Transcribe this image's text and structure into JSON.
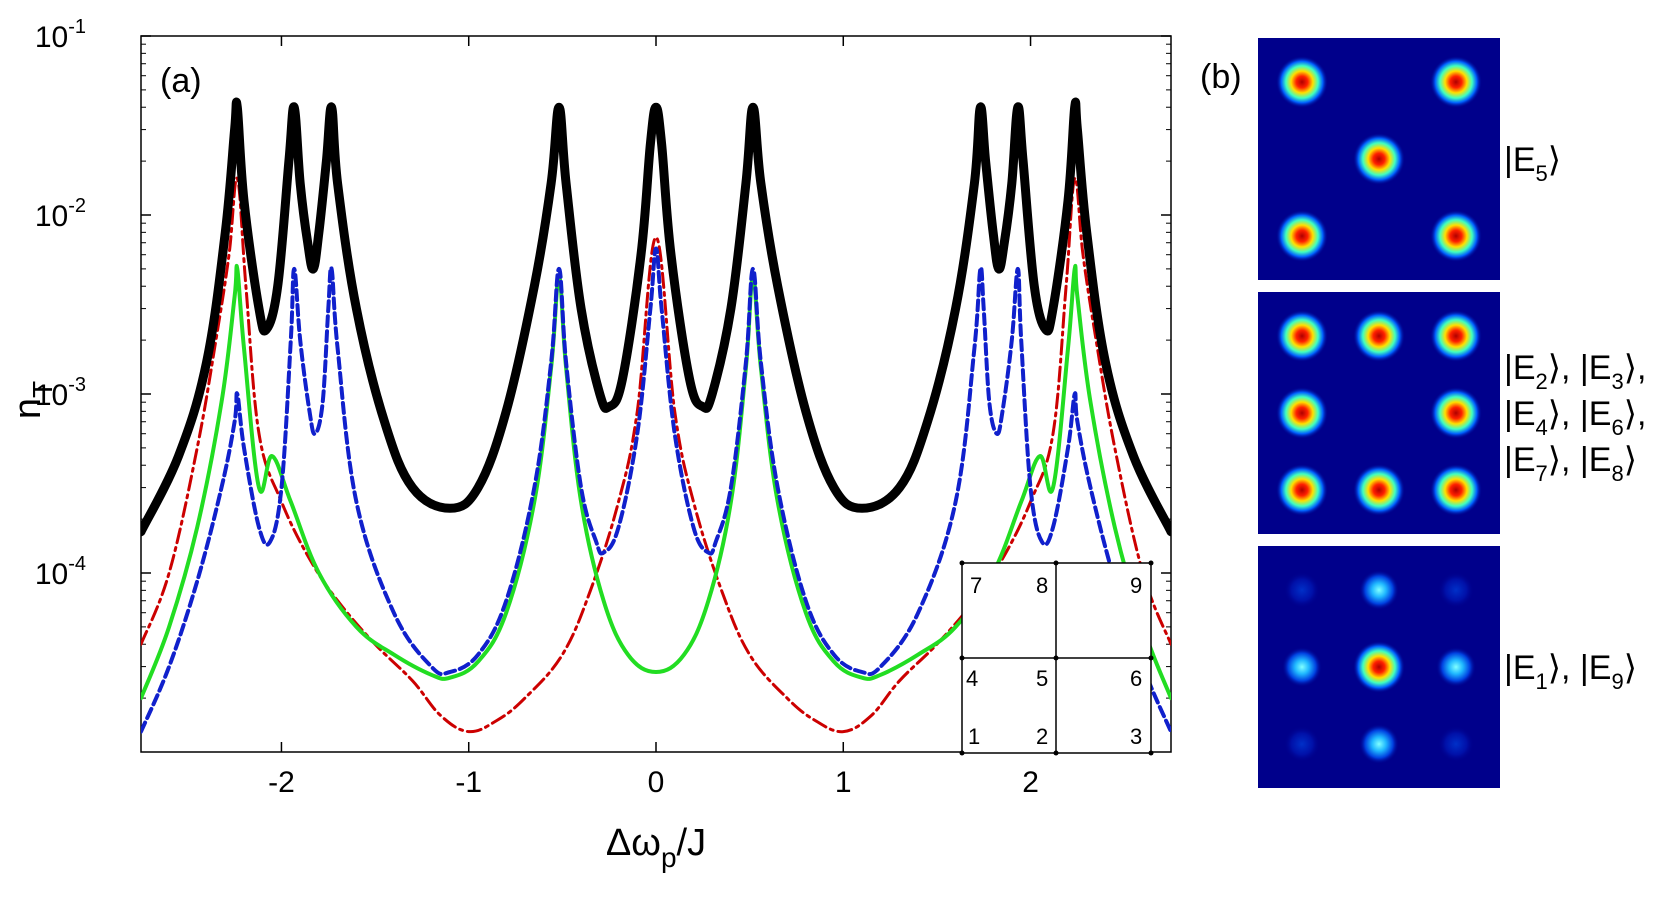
{
  "chart_data": {
    "type": "line",
    "panel_label": "(a)",
    "xlabel": {
      "base": "Δω",
      "sub": "p",
      "rest": "/J"
    },
    "ylabel": {
      "base": "n",
      "sub": "T"
    },
    "xlim": [
      -2.75,
      2.75
    ],
    "ylim": [
      1e-05,
      0.1
    ],
    "yscale": "log",
    "xticks": [
      {
        "value": -2,
        "label": "-2"
      },
      {
        "value": -1,
        "label": "-1"
      },
      {
        "value": 0,
        "label": "0"
      },
      {
        "value": 1,
        "label": "1"
      },
      {
        "value": 2,
        "label": "2"
      }
    ],
    "yticks": [
      {
        "value": 0.1,
        "base": "10",
        "exp": "-1"
      },
      {
        "value": 0.01,
        "base": "10",
        "exp": "-2"
      },
      {
        "value": 0.001,
        "base": "10",
        "exp": "-3"
      },
      {
        "value": 0.0001,
        "base": "10",
        "exp": "-4"
      }
    ],
    "series": [
      {
        "color": "#cc0000",
        "style": "dashdot",
        "x": [
          -2.75,
          -2.6,
          -2.45,
          -2.35,
          -2.28,
          -2.236,
          -2.19,
          -2.12,
          -2.0,
          -1.85,
          -1.7,
          -1.5,
          -1.3,
          -1.15,
          -1.0,
          -0.85,
          -0.7,
          -0.5,
          -0.35,
          -0.2,
          -0.1,
          0.0,
          0.1,
          0.2,
          0.35,
          0.5,
          0.7,
          0.85,
          1.0,
          1.15,
          1.3,
          1.5,
          1.7,
          1.85,
          2.0,
          2.12,
          2.19,
          2.236,
          2.28,
          2.35,
          2.45,
          2.6,
          2.75
        ],
        "y": [
          4e-05,
          0.0001,
          0.0005,
          0.002,
          0.006,
          0.016,
          0.004,
          0.0006,
          0.00025,
          0.00012,
          7e-05,
          4e-05,
          2.5e-05,
          1.6e-05,
          1.3e-05,
          1.5e-05,
          2e-05,
          3.5e-05,
          8e-05,
          0.00025,
          0.0008,
          0.0075,
          0.0008,
          0.00025,
          8e-05,
          3.5e-05,
          2e-05,
          1.5e-05,
          1.3e-05,
          1.6e-05,
          2.5e-05,
          4e-05,
          7e-05,
          0.00012,
          0.00025,
          0.0006,
          0.004,
          0.016,
          0.006,
          0.002,
          0.0005,
          0.0001,
          4e-05
        ]
      },
      {
        "color": "#22dd22",
        "style": "solid",
        "x": [
          -2.75,
          -2.6,
          -2.45,
          -2.32,
          -2.25,
          -2.236,
          -2.2,
          -2.12,
          -2.05,
          -1.95,
          -1.8,
          -1.6,
          -1.4,
          -1.2,
          -1.1,
          -0.95,
          -0.8,
          -0.65,
          -0.56,
          -0.518,
          -0.48,
          -0.4,
          -0.28,
          -0.15,
          0.0,
          0.15,
          0.28,
          0.4,
          0.48,
          0.518,
          0.56,
          0.65,
          0.8,
          0.95,
          1.1,
          1.2,
          1.4,
          1.6,
          1.8,
          1.95,
          2.05,
          2.12,
          2.2,
          2.236,
          2.25,
          2.32,
          2.45,
          2.6,
          2.75
        ],
        "y": [
          2e-05,
          5e-05,
          0.00018,
          0.0009,
          0.0035,
          0.005,
          0.0018,
          0.0003,
          0.00045,
          0.00025,
          0.0001,
          5e-05,
          3.5e-05,
          2.7e-05,
          2.6e-05,
          3.2e-05,
          6e-05,
          0.00025,
          0.0014,
          0.0045,
          0.0014,
          0.00025,
          7e-05,
          3.5e-05,
          2.8e-05,
          3.5e-05,
          7e-05,
          0.00025,
          0.0014,
          0.0045,
          0.0014,
          0.00025,
          6e-05,
          3.2e-05,
          2.6e-05,
          2.7e-05,
          3.5e-05,
          5e-05,
          0.0001,
          0.00025,
          0.00045,
          0.0003,
          0.0018,
          0.005,
          0.0035,
          0.0009,
          0.00018,
          5e-05,
          2e-05
        ]
      },
      {
        "color": "#1020cc",
        "style": "dashed",
        "x": [
          -2.75,
          -2.6,
          -2.45,
          -2.32,
          -2.25,
          -2.236,
          -2.2,
          -2.12,
          -2.06,
          -2.0,
          -1.95,
          -1.932,
          -1.9,
          -1.85,
          -1.82,
          -1.78,
          -1.75,
          -1.732,
          -1.7,
          -1.6,
          -1.4,
          -1.2,
          -1.1,
          -0.95,
          -0.8,
          -0.65,
          -0.56,
          -0.518,
          -0.48,
          -0.4,
          -0.32,
          -0.28,
          -0.2,
          -0.1,
          -0.03,
          0.0,
          0.03,
          0.1,
          0.2,
          0.28,
          0.32,
          0.4,
          0.48,
          0.518,
          0.56,
          0.65,
          0.8,
          0.95,
          1.1,
          1.2,
          1.4,
          1.6,
          1.7,
          1.732,
          1.75,
          1.78,
          1.82,
          1.85,
          1.9,
          1.932,
          1.95,
          2.0,
          2.06,
          2.12,
          2.2,
          2.236,
          2.25,
          2.32,
          2.45,
          2.6,
          2.75
        ],
        "y": [
          1.3e-05,
          3e-05,
          9e-05,
          0.0003,
          0.0007,
          0.001,
          0.0005,
          0.00018,
          0.00015,
          0.0003,
          0.002,
          0.005,
          0.002,
          0.0008,
          0.0006,
          0.0009,
          0.003,
          0.005,
          0.0018,
          0.00025,
          6e-05,
          3e-05,
          2.8e-05,
          3.5e-05,
          7e-05,
          0.0003,
          0.0015,
          0.005,
          0.0015,
          0.0003,
          0.00015,
          0.00013,
          0.00018,
          0.0006,
          0.003,
          0.0065,
          0.003,
          0.0006,
          0.00018,
          0.00013,
          0.00015,
          0.0003,
          0.0015,
          0.005,
          0.0015,
          0.0003,
          7e-05,
          3.5e-05,
          2.8e-05,
          3e-05,
          6e-05,
          0.00025,
          0.0018,
          0.005,
          0.003,
          0.0009,
          0.0006,
          0.0008,
          0.002,
          0.005,
          0.002,
          0.0003,
          0.00015,
          0.00018,
          0.0005,
          0.001,
          0.0007,
          0.0003,
          9e-05,
          3e-05,
          1.3e-05
        ]
      },
      {
        "color": "#000000",
        "style": "solid-thick",
        "x": [
          -2.75,
          -2.55,
          -2.4,
          -2.3,
          -2.25,
          -2.236,
          -2.2,
          -2.12,
          -2.08,
          -2.02,
          -1.96,
          -1.932,
          -1.9,
          -1.86,
          -1.83,
          -1.8,
          -1.76,
          -1.732,
          -1.7,
          -1.6,
          -1.45,
          -1.3,
          -1.1,
          -0.95,
          -0.8,
          -0.65,
          -0.56,
          -0.518,
          -0.48,
          -0.4,
          -0.3,
          -0.25,
          -0.18,
          -0.08,
          -0.03,
          0.0,
          0.03,
          0.08,
          0.18,
          0.25,
          0.3,
          0.4,
          0.48,
          0.518,
          0.56,
          0.65,
          0.8,
          0.95,
          1.1,
          1.3,
          1.45,
          1.6,
          1.7,
          1.732,
          1.76,
          1.8,
          1.83,
          1.86,
          1.9,
          1.932,
          1.96,
          2.02,
          2.08,
          2.12,
          2.2,
          2.236,
          2.25,
          2.3,
          2.4,
          2.55,
          2.75
        ],
        "y": [
          0.00017,
          0.00045,
          0.0015,
          0.008,
          0.03,
          0.04,
          0.012,
          0.003,
          0.0023,
          0.004,
          0.02,
          0.04,
          0.015,
          0.007,
          0.005,
          0.008,
          0.02,
          0.04,
          0.015,
          0.003,
          0.0007,
          0.0003,
          0.00023,
          0.0003,
          0.0008,
          0.004,
          0.015,
          0.04,
          0.015,
          0.003,
          0.001,
          0.00085,
          0.0012,
          0.006,
          0.025,
          0.04,
          0.025,
          0.006,
          0.0012,
          0.00085,
          0.001,
          0.003,
          0.015,
          0.04,
          0.015,
          0.004,
          0.0008,
          0.0003,
          0.00023,
          0.0003,
          0.0007,
          0.003,
          0.015,
          0.04,
          0.02,
          0.008,
          0.005,
          0.007,
          0.015,
          0.04,
          0.02,
          0.004,
          0.0023,
          0.003,
          0.012,
          0.04,
          0.03,
          0.008,
          0.0015,
          0.00045,
          0.00017
        ]
      }
    ],
    "inset_labels": [
      "7",
      "8",
      "9",
      "4",
      "5",
      "6",
      "1",
      "2",
      "3"
    ]
  },
  "panel_b": {
    "panel_label": "(b)",
    "background": "#00008b",
    "maps": [
      {
        "caption": "|E5⟩",
        "caption_lines": [
          [
            {
              "t": "|E",
              "s": "5",
              "after": "⟩"
            }
          ]
        ],
        "spot_intensity": [
          1,
          0,
          1,
          0,
          1,
          0,
          1,
          0,
          1
        ]
      },
      {
        "caption": "|E2⟩, |E3⟩, |E4⟩, |E6⟩, |E7⟩, |E8⟩",
        "caption_lines": [
          [
            {
              "t": "|E",
              "s": "2",
              "after": "⟩,"
            },
            {
              "t": "|E",
              "s": "3",
              "after": "⟩,"
            }
          ],
          [
            {
              "t": "|E",
              "s": "4",
              "after": "⟩,"
            },
            {
              "t": "|E",
              "s": "6",
              "after": "⟩,"
            }
          ],
          [
            {
              "t": "|E",
              "s": "7",
              "after": "⟩,"
            },
            {
              "t": "|E",
              "s": "8",
              "after": "⟩"
            }
          ]
        ],
        "spot_intensity": [
          1,
          1,
          1,
          1,
          0,
          1,
          1,
          1,
          1
        ]
      },
      {
        "caption": "|E1⟩, |E9⟩",
        "caption_lines": [
          [
            {
              "t": "|E",
              "s": "1",
              "after": "⟩,"
            },
            {
              "t": "|E",
              "s": "9",
              "after": "⟩"
            }
          ]
        ],
        "spot_intensity": [
          0.12,
          0.5,
          0.12,
          0.5,
          1,
          0.5,
          0.12,
          0.5,
          0.12
        ]
      }
    ]
  }
}
